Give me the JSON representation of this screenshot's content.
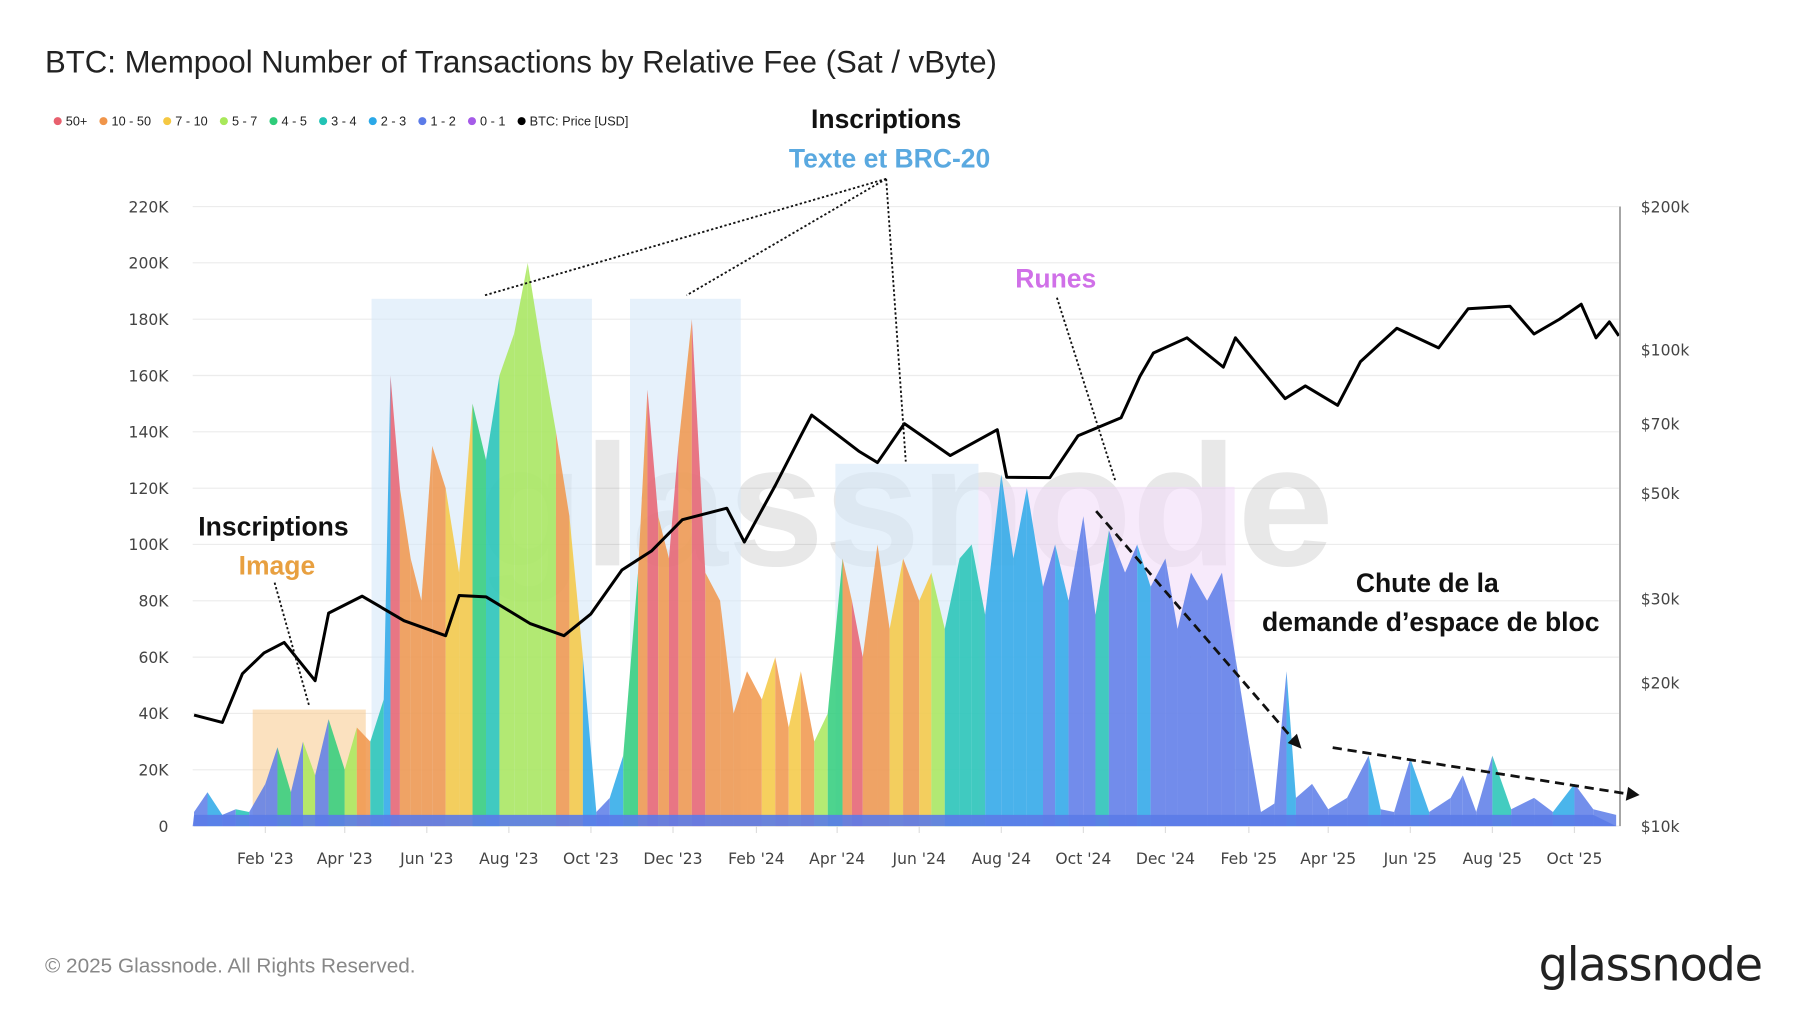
{
  "title": "BTC: Mempool Number of Transactions by Relative Fee (Sat / vByte)",
  "footer": "© 2025 Glassnode. All Rights Reserved.",
  "logo": "glassnode",
  "watermark": "glassnode",
  "legend": [
    {
      "label": "50+",
      "color": "#e8606e"
    },
    {
      "label": "10 - 50",
      "color": "#f0954a"
    },
    {
      "label": "7 - 10",
      "color": "#f5c842"
    },
    {
      "label": "5 - 7",
      "color": "#a8e85a"
    },
    {
      "label": "4 - 5",
      "color": "#2ecc7a"
    },
    {
      "label": "3 - 4",
      "color": "#22c3b5"
    },
    {
      "label": "2 - 3",
      "color": "#2aa8e8"
    },
    {
      "label": "1 - 2",
      "color": "#5b7be8"
    },
    {
      "label": "0 - 1",
      "color": "#a55be8"
    },
    {
      "label": "BTC: Price [USD]",
      "color": "#000000"
    }
  ],
  "annotations": {
    "text_brc20_title": "Inscriptions",
    "text_brc20_sub": "Texte et BRC-20",
    "runes": "Runes",
    "image_title": "Inscriptions",
    "image_sub": "Image",
    "drop_line1": "Chute de la",
    "drop_line2": "demande d’espace de bloc",
    "colors": {
      "brc20": "#5aa9e0",
      "runes": "#d070e8",
      "image": "#e8a040"
    }
  },
  "chart_data": {
    "type": "area",
    "title": "BTC: Mempool Number of Transactions by Relative Fee (Sat / vByte)",
    "x_range": [
      "2022-12-09",
      "2025-11-03"
    ],
    "x_ticks": [
      "Feb '23",
      "Apr '23",
      "Jun '23",
      "Aug '23",
      "Oct '23",
      "Dec '23",
      "Feb '24",
      "Apr '24",
      "Jun '24",
      "Aug '24",
      "Oct '24",
      "Dec '24",
      "Feb '25",
      "Apr '25",
      "Jun '25",
      "Aug '25",
      "Oct '25"
    ],
    "x_tick_dates": [
      "2023-02-01",
      "2023-04-01",
      "2023-06-01",
      "2023-08-01",
      "2023-10-01",
      "2023-12-01",
      "2024-02-01",
      "2024-04-01",
      "2024-06-01",
      "2024-08-01",
      "2024-10-01",
      "2024-12-01",
      "2025-02-01",
      "2025-04-01",
      "2025-06-01",
      "2025-08-01",
      "2025-10-01"
    ],
    "y_left": {
      "ticks": [
        "0",
        "20K",
        "40K",
        "60K",
        "80K",
        "100K",
        "120K",
        "140K",
        "160K",
        "180K",
        "200K",
        "220K"
      ],
      "range": [
        0,
        220000
      ]
    },
    "y_right": {
      "scale": "log",
      "ticks": [
        "$10k",
        "$20k",
        "$30k",
        "$50k",
        "$70k",
        "$100k",
        "$200k"
      ],
      "tick_values": [
        10000,
        20000,
        30000,
        50000,
        70000,
        100000,
        200000
      ],
      "range": [
        10000,
        200000
      ]
    },
    "grid": true,
    "legend_position": "top-left",
    "mempool_points": [
      [
        "2022-12-10",
        5000,
        "1 - 2"
      ],
      [
        "2022-12-20",
        12000,
        "2 - 3"
      ],
      [
        "2022-12-31",
        4000,
        "1 - 2"
      ],
      [
        "2023-01-10",
        6000,
        "3 - 4"
      ],
      [
        "2023-01-20",
        5000,
        "1 - 2"
      ],
      [
        "2023-02-01",
        15000,
        "1 - 2"
      ],
      [
        "2023-02-10",
        28000,
        "4 - 5"
      ],
      [
        "2023-02-20",
        12000,
        "1 - 2"
      ],
      [
        "2023-03-01",
        30000,
        "5 - 7"
      ],
      [
        "2023-03-10",
        18000,
        "1 - 2"
      ],
      [
        "2023-03-20",
        38000,
        "4 - 5"
      ],
      [
        "2023-04-01",
        20000,
        "5 - 7"
      ],
      [
        "2023-04-10",
        35000,
        "10 - 50"
      ],
      [
        "2023-04-20",
        30000,
        "3 - 4"
      ],
      [
        "2023-04-30",
        45000,
        "2 - 3"
      ],
      [
        "2023-05-05",
        160000,
        "50+"
      ],
      [
        "2023-05-12",
        120000,
        "10 - 50"
      ],
      [
        "2023-05-20",
        95000,
        "10 - 50"
      ],
      [
        "2023-05-28",
        80000,
        "10 - 50"
      ],
      [
        "2023-06-05",
        135000,
        "10 - 50"
      ],
      [
        "2023-06-15",
        120000,
        "7 - 10"
      ],
      [
        "2023-06-25",
        90000,
        "7 - 10"
      ],
      [
        "2023-07-05",
        150000,
        "4 - 5"
      ],
      [
        "2023-07-15",
        130000,
        "3 - 4"
      ],
      [
        "2023-07-25",
        160000,
        "5 - 7"
      ],
      [
        "2023-08-05",
        175000,
        "5 - 7"
      ],
      [
        "2023-08-15",
        200000,
        "5 - 7"
      ],
      [
        "2023-08-25",
        170000,
        "5 - 7"
      ],
      [
        "2023-09-05",
        140000,
        "10 - 50"
      ],
      [
        "2023-09-15",
        110000,
        "7 - 10"
      ],
      [
        "2023-09-25",
        60000,
        "2 - 3"
      ],
      [
        "2023-10-05",
        5000,
        "1 - 2"
      ],
      [
        "2023-10-15",
        10000,
        "2 - 3"
      ],
      [
        "2023-10-25",
        25000,
        "4 - 5"
      ],
      [
        "2023-11-05",
        90000,
        "10 - 50"
      ],
      [
        "2023-11-12",
        155000,
        "50+"
      ],
      [
        "2023-11-20",
        110000,
        "10 - 50"
      ],
      [
        "2023-11-28",
        95000,
        "50+"
      ],
      [
        "2023-12-05",
        135000,
        "10 - 50"
      ],
      [
        "2023-12-15",
        180000,
        "50+"
      ],
      [
        "2023-12-25",
        90000,
        "10 - 50"
      ],
      [
        "2024-01-05",
        80000,
        "10 - 50"
      ],
      [
        "2024-01-15",
        40000,
        "10 - 50"
      ],
      [
        "2024-01-25",
        55000,
        "10 - 50"
      ],
      [
        "2024-02-05",
        45000,
        "7 - 10"
      ],
      [
        "2024-02-15",
        60000,
        "10 - 50"
      ],
      [
        "2024-02-25",
        35000,
        "7 - 10"
      ],
      [
        "2024-03-05",
        55000,
        "10 - 50"
      ],
      [
        "2024-03-15",
        30000,
        "5 - 7"
      ],
      [
        "2024-03-25",
        40000,
        "4 - 5"
      ],
      [
        "2024-04-05",
        95000,
        "10 - 50"
      ],
      [
        "2024-04-12",
        80000,
        "50+"
      ],
      [
        "2024-04-20",
        60000,
        "10 - 50"
      ],
      [
        "2024-05-01",
        100000,
        "10 - 50"
      ],
      [
        "2024-05-10",
        70000,
        "7 - 10"
      ],
      [
        "2024-05-20",
        95000,
        "10 - 50"
      ],
      [
        "2024-06-01",
        80000,
        "7 - 10"
      ],
      [
        "2024-06-10",
        90000,
        "5 - 7"
      ],
      [
        "2024-06-20",
        70000,
        "3 - 4"
      ],
      [
        "2024-07-01",
        95000,
        "3 - 4"
      ],
      [
        "2024-07-10",
        100000,
        "3 - 4"
      ],
      [
        "2024-07-20",
        75000,
        "2 - 3"
      ],
      [
        "2024-08-01",
        125000,
        "2 - 3"
      ],
      [
        "2024-08-10",
        95000,
        "2 - 3"
      ],
      [
        "2024-08-20",
        120000,
        "2 - 3"
      ],
      [
        "2024-09-01",
        85000,
        "1 - 2"
      ],
      [
        "2024-09-10",
        100000,
        "2 - 3"
      ],
      [
        "2024-09-20",
        80000,
        "1 - 2"
      ],
      [
        "2024-10-01",
        110000,
        "1 - 2"
      ],
      [
        "2024-10-10",
        75000,
        "3 - 4"
      ],
      [
        "2024-10-20",
        105000,
        "1 - 2"
      ],
      [
        "2024-11-01",
        90000,
        "1 - 2"
      ],
      [
        "2024-11-10",
        100000,
        "2 - 3"
      ],
      [
        "2024-11-20",
        85000,
        "1 - 2"
      ],
      [
        "2024-12-01",
        95000,
        "1 - 2"
      ],
      [
        "2024-12-10",
        70000,
        "1 - 2"
      ],
      [
        "2024-12-20",
        90000,
        "1 - 2"
      ],
      [
        "2025-01-01",
        80000,
        "1 - 2"
      ],
      [
        "2025-01-12",
        90000,
        "1 - 2"
      ],
      [
        "2025-01-22",
        60000,
        "1 - 2"
      ],
      [
        "2025-02-01",
        30000,
        "1 - 2"
      ],
      [
        "2025-02-10",
        5000,
        "1 - 2"
      ],
      [
        "2025-02-20",
        8000,
        "1 - 2"
      ],
      [
        "2025-03-01",
        55000,
        "2 - 3"
      ],
      [
        "2025-03-08",
        10000,
        "1 - 2"
      ],
      [
        "2025-03-20",
        15000,
        "1 - 2"
      ],
      [
        "2025-04-01",
        6000,
        "1 - 2"
      ],
      [
        "2025-04-15",
        10000,
        "1 - 2"
      ],
      [
        "2025-05-01",
        25000,
        "2 - 3"
      ],
      [
        "2025-05-10",
        6000,
        "1 - 2"
      ],
      [
        "2025-05-20",
        5000,
        "1 - 2"
      ],
      [
        "2025-06-01",
        24000,
        "2 - 3"
      ],
      [
        "2025-06-15",
        5000,
        "1 - 2"
      ],
      [
        "2025-07-01",
        10000,
        "1 - 2"
      ],
      [
        "2025-07-10",
        18000,
        "1 - 2"
      ],
      [
        "2025-07-20",
        5000,
        "1 - 2"
      ],
      [
        "2025-08-01",
        25000,
        "3 - 4"
      ],
      [
        "2025-08-15",
        6000,
        "1 - 2"
      ],
      [
        "2025-09-01",
        10000,
        "1 - 2"
      ],
      [
        "2025-09-15",
        5000,
        "2 - 3"
      ],
      [
        "2025-10-01",
        15000,
        "1 - 2"
      ],
      [
        "2025-10-15",
        6000,
        "1 - 2"
      ],
      [
        "2025-11-01",
        4000,
        "1 - 2"
      ]
    ],
    "price_series": {
      "name": "BTC: Price [USD]",
      "points": [
        [
          "2022-12-10",
          17100
        ],
        [
          "2022-12-31",
          16500
        ],
        [
          "2023-01-15",
          20900
        ],
        [
          "2023-01-31",
          23100
        ],
        [
          "2023-02-15",
          24300
        ],
        [
          "2023-03-10",
          20200
        ],
        [
          "2023-03-20",
          28000
        ],
        [
          "2023-04-14",
          30400
        ],
        [
          "2023-05-15",
          27000
        ],
        [
          "2023-06-15",
          25100
        ],
        [
          "2023-06-25",
          30500
        ],
        [
          "2023-07-15",
          30300
        ],
        [
          "2023-08-17",
          26600
        ],
        [
          "2023-09-11",
          25100
        ],
        [
          "2023-10-01",
          27900
        ],
        [
          "2023-10-24",
          34500
        ],
        [
          "2023-11-15",
          37800
        ],
        [
          "2023-12-08",
          44000
        ],
        [
          "2024-01-10",
          46500
        ],
        [
          "2024-01-23",
          39500
        ],
        [
          "2024-02-15",
          51900
        ],
        [
          "2024-03-05",
          66000
        ],
        [
          "2024-03-13",
          73000
        ],
        [
          "2024-04-17",
          61300
        ],
        [
          "2024-05-01",
          58000
        ],
        [
          "2024-05-21",
          70000
        ],
        [
          "2024-06-24",
          60000
        ],
        [
          "2024-07-29",
          68000
        ],
        [
          "2024-08-05",
          54000
        ],
        [
          "2024-09-06",
          53900
        ],
        [
          "2024-09-27",
          66000
        ],
        [
          "2024-10-29",
          72000
        ],
        [
          "2024-11-12",
          88000
        ],
        [
          "2024-11-22",
          98500
        ],
        [
          "2024-12-17",
          106000
        ],
        [
          "2025-01-13",
          92000
        ],
        [
          "2025-01-22",
          106000
        ],
        [
          "2025-02-28",
          79000
        ],
        [
          "2025-03-15",
          84000
        ],
        [
          "2025-04-08",
          76500
        ],
        [
          "2025-04-25",
          94500
        ],
        [
          "2025-05-22",
          111000
        ],
        [
          "2025-06-22",
          101000
        ],
        [
          "2025-07-14",
          122000
        ],
        [
          "2025-08-14",
          123500
        ],
        [
          "2025-09-01",
          108000
        ],
        [
          "2025-09-20",
          116000
        ],
        [
          "2025-10-06",
          124700
        ],
        [
          "2025-10-17",
          106000
        ],
        [
          "2025-10-27",
          114500
        ],
        [
          "2025-11-03",
          107000
        ]
      ]
    }
  }
}
